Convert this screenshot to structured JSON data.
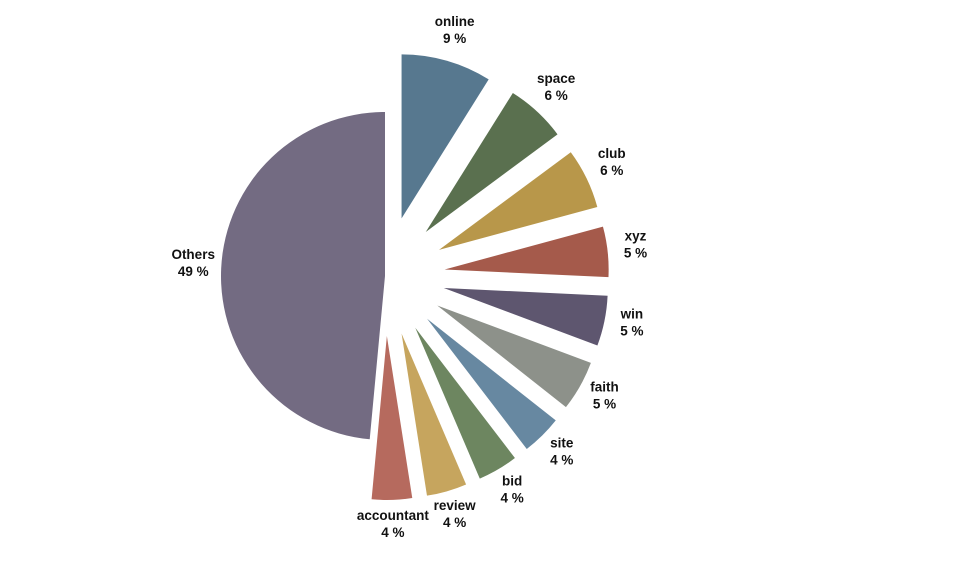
{
  "chart_data": {
    "type": "pie",
    "title": "",
    "label_suffix": " %",
    "slices": [
      {
        "label": "online",
        "value": 9,
        "color": "#57788f"
      },
      {
        "label": "space",
        "value": 6,
        "color": "#5a704f"
      },
      {
        "label": "club",
        "value": 6,
        "color": "#b8974a"
      },
      {
        "label": "xyz",
        "value": 5,
        "color": "#a55a4b"
      },
      {
        "label": "win",
        "value": 5,
        "color": "#5e566f"
      },
      {
        "label": "faith",
        "value": 5,
        "color": "#8d918a"
      },
      {
        "label": "site",
        "value": 4,
        "color": "#6788a1"
      },
      {
        "label": "bid",
        "value": 4,
        "color": "#6d8660"
      },
      {
        "label": "review",
        "value": 4,
        "color": "#c6a55e"
      },
      {
        "label": "accountant",
        "value": 4,
        "color": "#b66a5e"
      },
      {
        "label": "Others",
        "value": 49,
        "color": "#736b82"
      }
    ]
  }
}
